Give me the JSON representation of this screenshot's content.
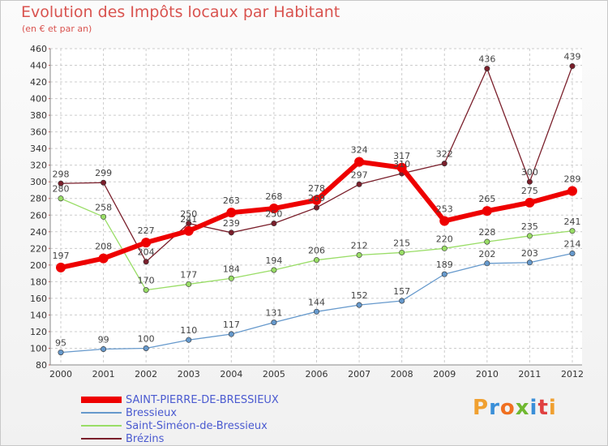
{
  "chart_data": {
    "type": "line",
    "title": "Evolution des Impôts locaux par Habitant",
    "subtitle": "(en € et par an)",
    "x": [
      "2000",
      "2001",
      "2002",
      "2003",
      "2004",
      "2005",
      "2006",
      "2007",
      "2008",
      "2009",
      "2010",
      "2011",
      "2012"
    ],
    "ylim": [
      80,
      460
    ],
    "ytick_step": 20,
    "grid": true,
    "legend_position": "bottom-left",
    "series": [
      {
        "name": "SAINT-PIERRE-DE-BRESSIEUX",
        "color": "#ee0000",
        "emphasis": true,
        "values": [
          197,
          208,
          227,
          241,
          263,
          268,
          278,
          324,
          317,
          253,
          265,
          275,
          289
        ]
      },
      {
        "name": "Bressieux",
        "color": "#6699cc",
        "values": [
          95,
          99,
          100,
          110,
          117,
          131,
          144,
          152,
          157,
          189,
          202,
          203,
          214
        ]
      },
      {
        "name": "Saint-Siméon-de-Bressieux",
        "color": "#99dd66",
        "values": [
          280,
          258,
          170,
          177,
          184,
          194,
          206,
          212,
          215,
          220,
          228,
          235,
          241
        ]
      },
      {
        "name": "Brézins",
        "color": "#7a1f2b",
        "values": [
          298,
          299,
          204,
          250,
          239,
          250,
          269,
          297,
          310,
          322,
          436,
          300,
          439
        ]
      }
    ]
  },
  "logo": {
    "text": "Proxiti"
  }
}
